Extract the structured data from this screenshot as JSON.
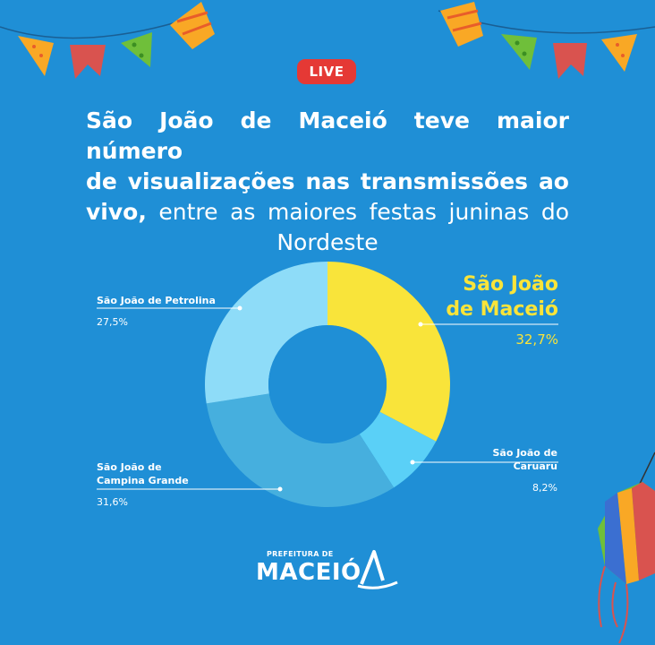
{
  "badge": "LIVE",
  "headline": {
    "line1": "São João de Maceió teve maior número",
    "line2": "de visualizações nas transmissões ao",
    "line3_bold": "vivo,",
    "line3_rest": " entre as maiores festas juninas do",
    "line4": "Nordeste"
  },
  "colors": {
    "background": "#1f8fd6",
    "maceio": "#f9e43a",
    "caruaru": "#5ad0f7",
    "campina": "#46afde",
    "petrolina": "#8edcf8",
    "badge": "#e53935"
  },
  "chart_data": {
    "type": "pie",
    "donut": true,
    "slices": [
      {
        "name_lines": [
          "São João",
          "de Maceió"
        ],
        "value": 32.7,
        "label": "32,7%",
        "color": "#f9e43a"
      },
      {
        "name_lines": [
          "São João de Caruaru"
        ],
        "value": 8.2,
        "label": "8,2%",
        "color": "#5ad0f7"
      },
      {
        "name_lines": [
          "São João de",
          "Campina Grande"
        ],
        "value": 31.6,
        "label": "31,6%",
        "color": "#46afde"
      },
      {
        "name_lines": [
          "São João de Petrolina"
        ],
        "value": 27.5,
        "label": "27,5%",
        "color": "#8edcf8"
      }
    ]
  },
  "logo": {
    "small": "PREFEITURA DE",
    "big": "MACEIÓ"
  }
}
